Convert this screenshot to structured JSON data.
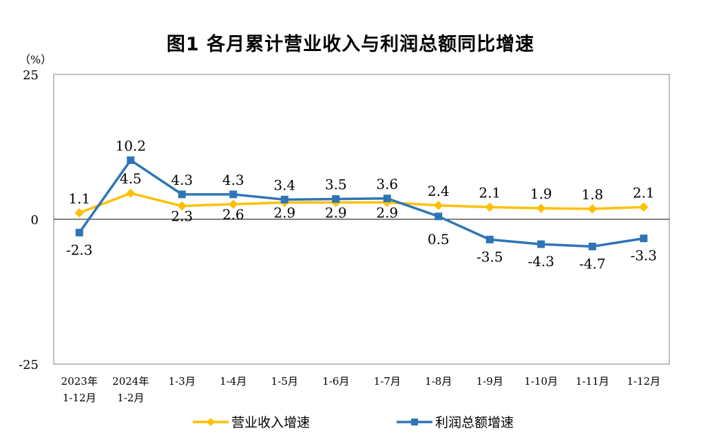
{
  "chart_data": {
    "type": "line",
    "title": "图1  各月累计营业收入与利润总额同比增速",
    "ylabel": "（%）",
    "ylim": [
      -25,
      25
    ],
    "yticks": [
      "25",
      "0",
      "-25"
    ],
    "ytick_values": [
      25,
      0,
      -25
    ],
    "categories": [
      [
        "2023年",
        "1-12月"
      ],
      [
        "2024年",
        "1-2月"
      ],
      [
        "1-3月"
      ],
      [
        "1-4月"
      ],
      [
        "1-5月"
      ],
      [
        "1-6月"
      ],
      [
        "1-7月"
      ],
      [
        "1-8月"
      ],
      [
        "1-9月"
      ],
      [
        "1-10月"
      ],
      [
        "1-11月"
      ],
      [
        "1-12月"
      ]
    ],
    "series": [
      {
        "name": "营业收入增速",
        "color": "#FFC000",
        "marker": "diamond",
        "values": [
          1.1,
          4.5,
          2.3,
          2.6,
          2.9,
          2.9,
          2.9,
          2.4,
          2.1,
          1.9,
          1.8,
          2.1
        ],
        "labels": [
          "1.1",
          "4.5",
          "2.3",
          "2.6",
          "2.9",
          "2.9",
          "2.9",
          "2.4",
          "2.1",
          "1.9",
          "1.8",
          "2.1"
        ]
      },
      {
        "name": "利润总额增速",
        "color": "#2E75B6",
        "marker": "square",
        "values": [
          -2.3,
          10.2,
          4.3,
          4.3,
          3.4,
          3.5,
          3.6,
          0.5,
          -3.5,
          -4.3,
          -4.7,
          -3.3
        ],
        "labels": [
          "-2.3",
          "10.2",
          "4.3",
          "4.3",
          "3.4",
          "3.5",
          "3.6",
          "0.5",
          "-3.5",
          "-4.3",
          "-4.7",
          "-3.3"
        ]
      }
    ],
    "legend_position": "bottom",
    "grid": false
  }
}
